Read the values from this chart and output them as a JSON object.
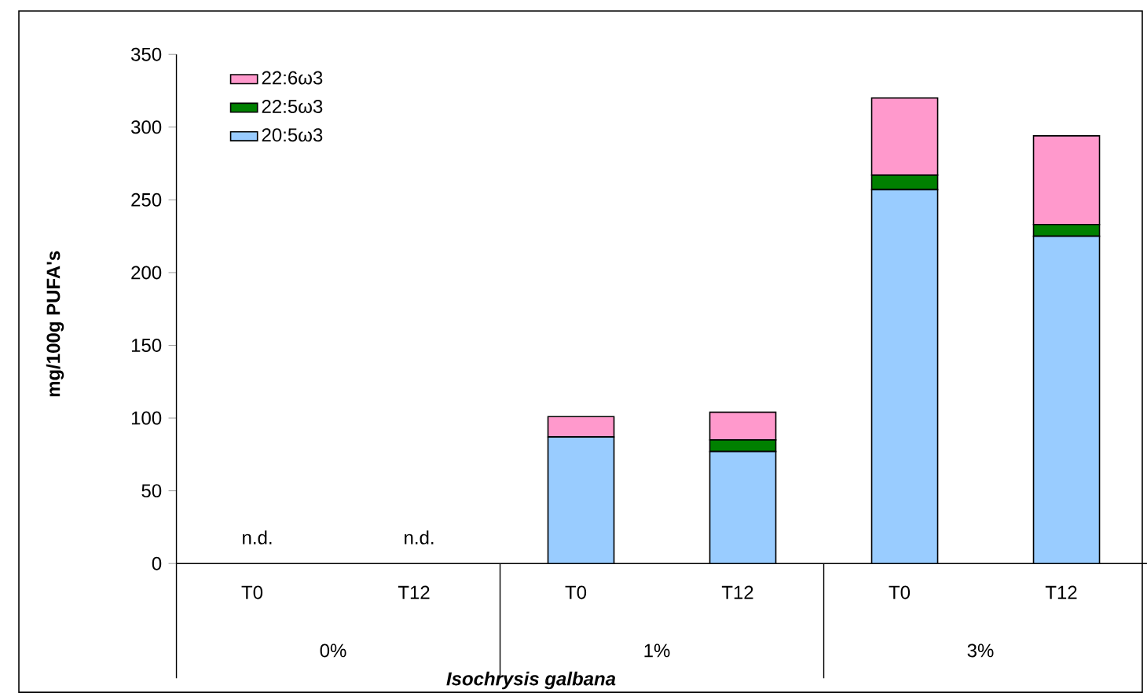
{
  "chart_data": {
    "type": "bar",
    "stacked": true,
    "ylabel": "mg/100g PUFA's",
    "xlabel": "*Isochrysis galbana*",
    "categories": [
      "T0",
      "T12",
      "T0",
      "T12",
      "T0",
      "T12"
    ],
    "series": [
      {
        "name": "20:5ω3",
        "color": "#99ccff",
        "values": [
          null,
          null,
          87,
          77,
          257,
          225
        ],
        "value_labels": [
          "n.d.",
          "n.d.",
          null,
          null,
          null,
          null
        ]
      },
      {
        "name": "22:5ω3",
        "color": "#008000",
        "values": [
          null,
          null,
          0,
          8,
          10,
          8
        ]
      },
      {
        "name": "22:6ω3",
        "color": "#ff99cc",
        "values": [
          null,
          null,
          14,
          19,
          53,
          61
        ]
      }
    ],
    "annotations": [
      "0%",
      "1%",
      "3%"
    ],
    "ylim": [
      0,
      350
    ],
    "yticks": [
      0,
      50,
      100,
      150,
      200,
      250,
      300,
      350
    ],
    "legend": "top left"
  }
}
